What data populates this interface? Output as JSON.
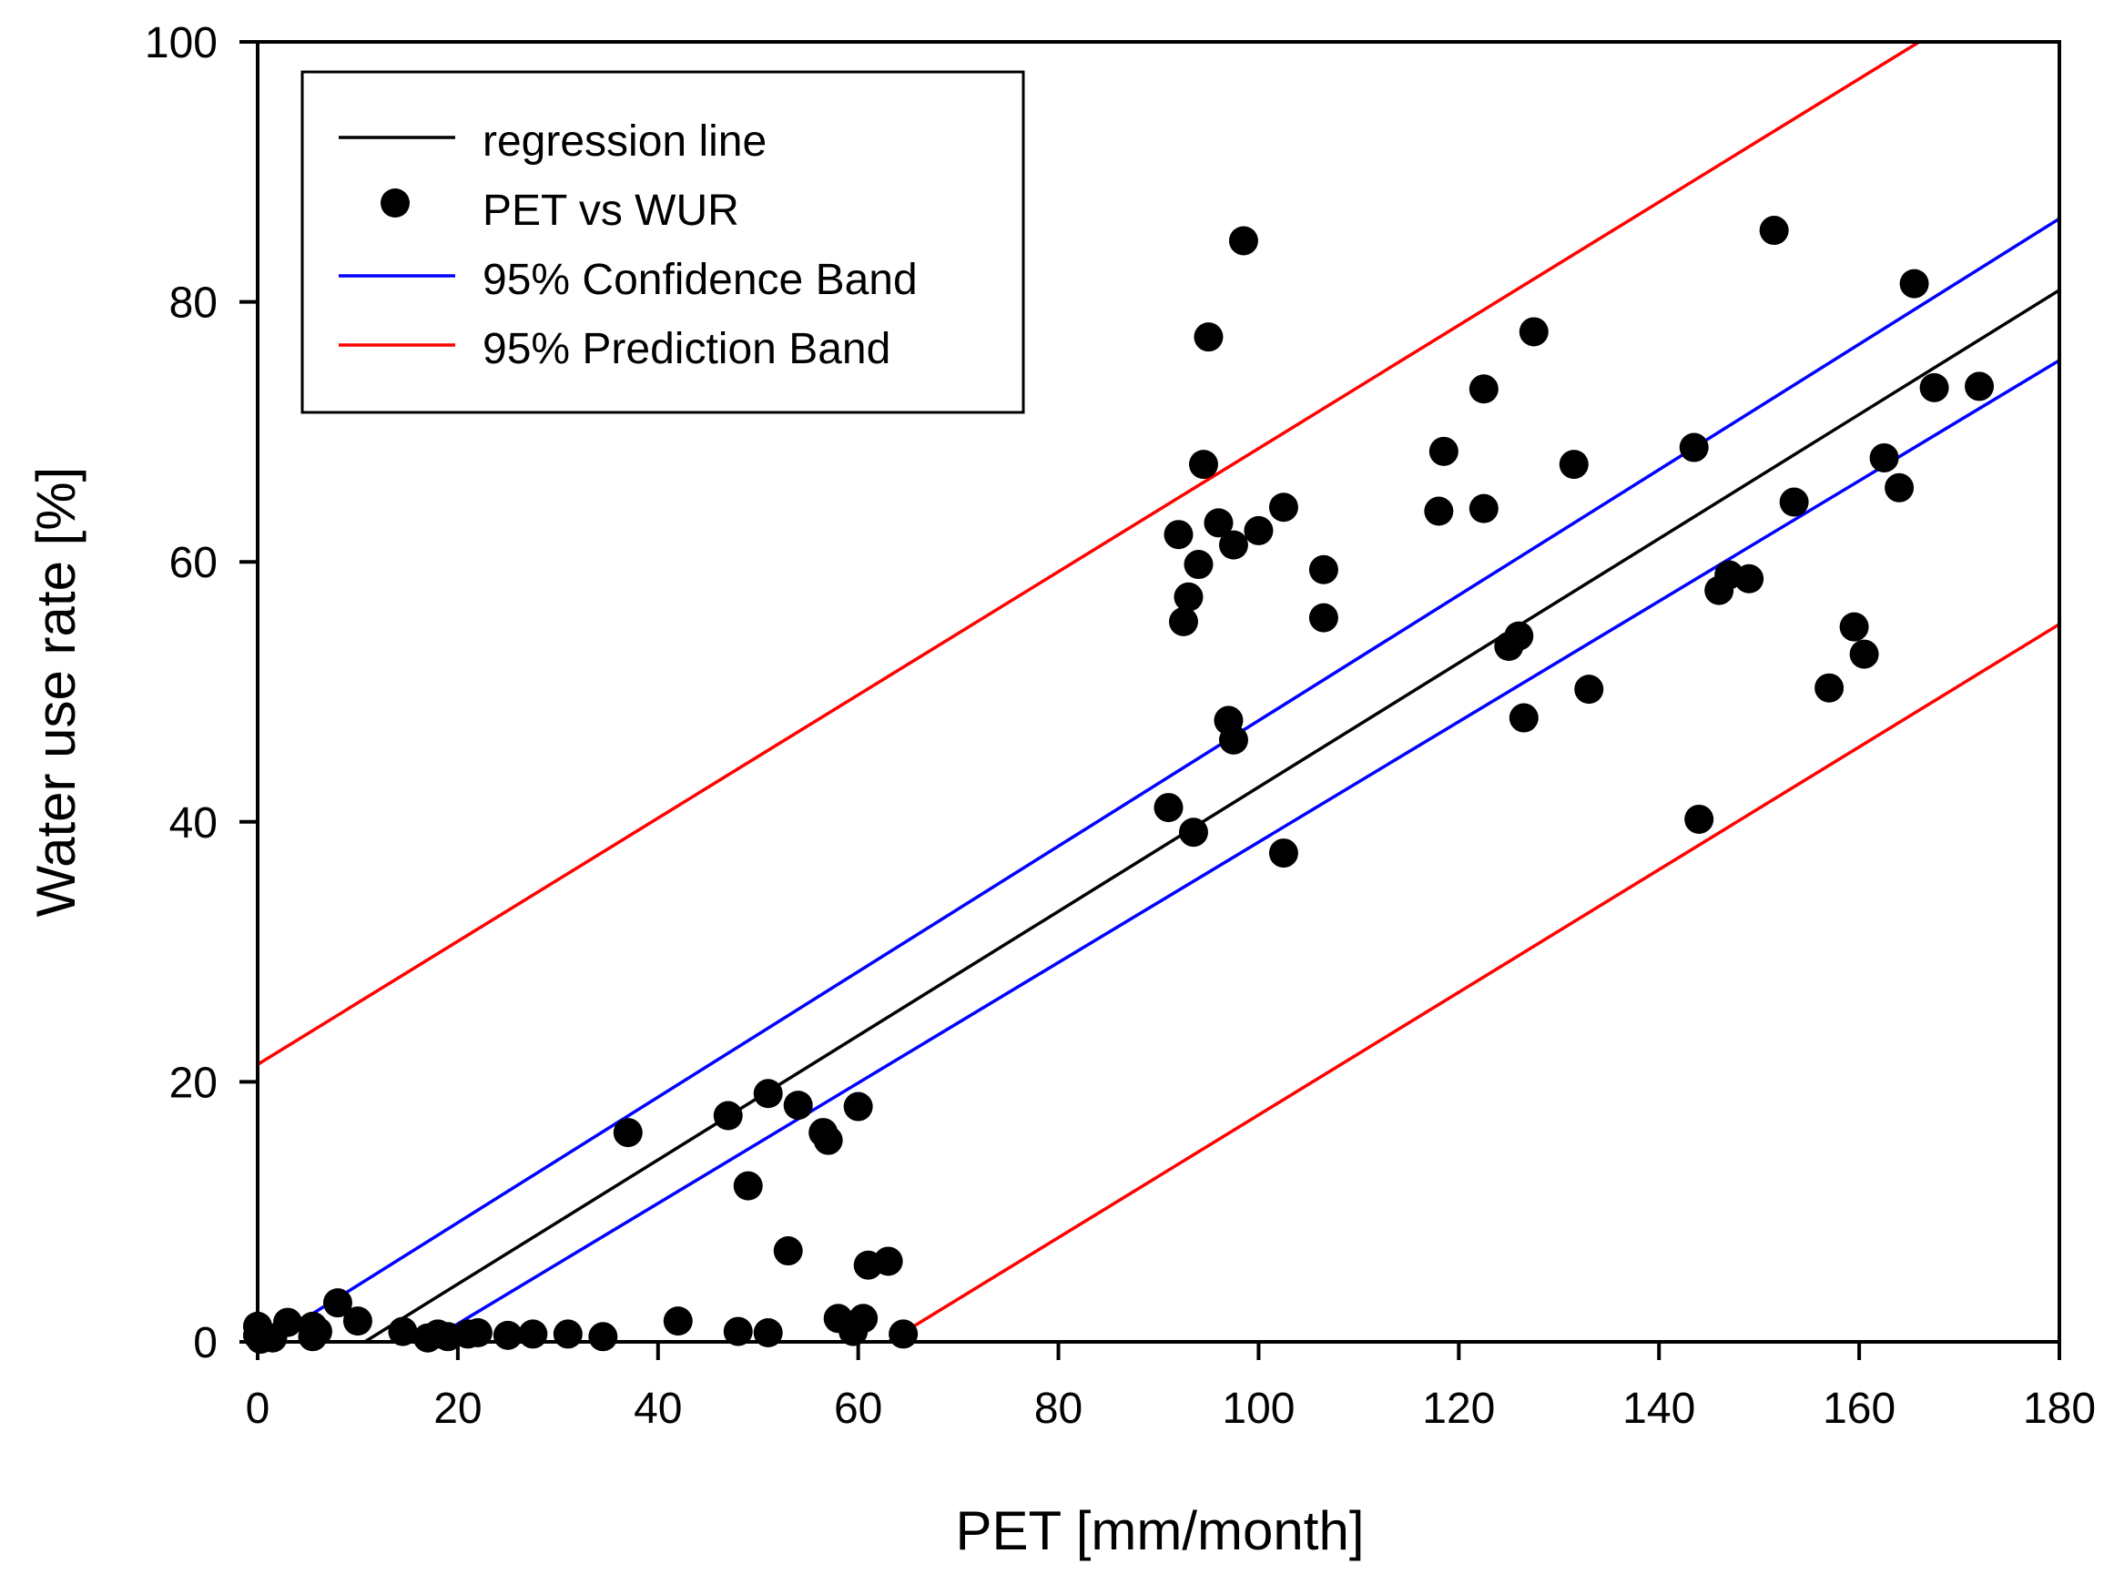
{
  "chart_data": {
    "type": "scatter",
    "title": "",
    "xlabel": "PET [mm/month]",
    "ylabel": "Water use rate [%]",
    "xlim": [
      0,
      180
    ],
    "ylim": [
      0,
      100
    ],
    "xticks": [
      0,
      20,
      40,
      60,
      80,
      100,
      120,
      140,
      160,
      180
    ],
    "yticks": [
      0,
      20,
      40,
      60,
      80,
      100
    ],
    "grid": false,
    "legend_position": "top-left",
    "legend": [
      {
        "label": "regression line",
        "kind": "line",
        "color": "#000000"
      },
      {
        "label": "PET vs WUR",
        "kind": "marker",
        "color": "#000000"
      },
      {
        "label": "95% Confidence Band",
        "kind": "line",
        "color": "#0000ff"
      },
      {
        "label": "95% Prediction Band",
        "kind": "line",
        "color": "#ff0000"
      }
    ],
    "regression_line": {
      "name": "regression line",
      "color": "#000000",
      "x": [
        10.7,
        180
      ],
      "y": [
        0,
        80.9
      ]
    },
    "confidence_upper": {
      "name": "95% Confidence Band (upper)",
      "color": "#0000ff",
      "x": [
        1,
        180
      ],
      "y": [
        0,
        86.4
      ]
    },
    "confidence_lower": {
      "name": "95% Confidence Band (lower)",
      "color": "#0000ff",
      "x": [
        17,
        180
      ],
      "y": [
        0,
        75.5
      ]
    },
    "prediction_upper": {
      "name": "95% Prediction Band (upper)",
      "color": "#ff0000",
      "x": [
        -0.5,
        166
      ],
      "y": [
        21.1,
        100
      ]
    },
    "prediction_lower": {
      "name": "95% Prediction Band (lower)",
      "color": "#ff0000",
      "x": [
        63,
        180
      ],
      "y": [
        0,
        55.2
      ]
    },
    "series": [
      {
        "name": "PET vs WUR",
        "color": "#000000",
        "points": [
          [
            0,
            0.5
          ],
          [
            0,
            1.2
          ],
          [
            0.3,
            0.2
          ],
          [
            1.5,
            0.3
          ],
          [
            3,
            1.5
          ],
          [
            5.5,
            1.2
          ],
          [
            5.5,
            0.4
          ],
          [
            6,
            0.8
          ],
          [
            8,
            3
          ],
          [
            10,
            1.6
          ],
          [
            14.5,
            0.8
          ],
          [
            17,
            0.3
          ],
          [
            18,
            0.6
          ],
          [
            19,
            0.4
          ],
          [
            21,
            0.6
          ],
          [
            22,
            0.7
          ],
          [
            25,
            0.5
          ],
          [
            27.5,
            0.6
          ],
          [
            31,
            0.6
          ],
          [
            34.5,
            0.4
          ],
          [
            37,
            16.1
          ],
          [
            42,
            1.6
          ],
          [
            47,
            17.4
          ],
          [
            48,
            0.8
          ],
          [
            49,
            12
          ],
          [
            51,
            0.7
          ],
          [
            51,
            19.1
          ],
          [
            53,
            7
          ],
          [
            54,
            18.2
          ],
          [
            56.5,
            16.1
          ],
          [
            57,
            15.5
          ],
          [
            58,
            1.8
          ],
          [
            59.5,
            0.8
          ],
          [
            60,
            18.1
          ],
          [
            60.5,
            1.8
          ],
          [
            61,
            5.9
          ],
          [
            63,
            6.2
          ],
          [
            64.5,
            0.6
          ],
          [
            91,
            41.1
          ],
          [
            92,
            62.1
          ],
          [
            92.5,
            55.4
          ],
          [
            93,
            57.3
          ],
          [
            93.5,
            39.2
          ],
          [
            94,
            59.8
          ],
          [
            94.5,
            67.5
          ],
          [
            95,
            77.3
          ],
          [
            96,
            63
          ],
          [
            97,
            47.8
          ],
          [
            97.5,
            61.3
          ],
          [
            97.5,
            46.3
          ],
          [
            98.5,
            84.7
          ],
          [
            100,
            62.4
          ],
          [
            102.5,
            37.6
          ],
          [
            102.5,
            64.2
          ],
          [
            106.5,
            59.4
          ],
          [
            106.5,
            55.7
          ],
          [
            118,
            63.9
          ],
          [
            118.5,
            68.5
          ],
          [
            122.5,
            73.3
          ],
          [
            122.5,
            64.1
          ],
          [
            125,
            53.5
          ],
          [
            126,
            54.3
          ],
          [
            126.5,
            48
          ],
          [
            127.5,
            77.7
          ],
          [
            131.5,
            67.5
          ],
          [
            133,
            50.2
          ],
          [
            143.5,
            68.8
          ],
          [
            144,
            40.2
          ],
          [
            146,
            57.8
          ],
          [
            147,
            59
          ],
          [
            149,
            58.7
          ],
          [
            151.5,
            85.5
          ],
          [
            153.5,
            64.6
          ],
          [
            157,
            50.3
          ],
          [
            159.5,
            55
          ],
          [
            160.5,
            52.9
          ],
          [
            162.5,
            68
          ],
          [
            164,
            65.7
          ],
          [
            165.5,
            81.4
          ],
          [
            167.5,
            73.4
          ],
          [
            172,
            73.5
          ]
        ]
      }
    ]
  }
}
